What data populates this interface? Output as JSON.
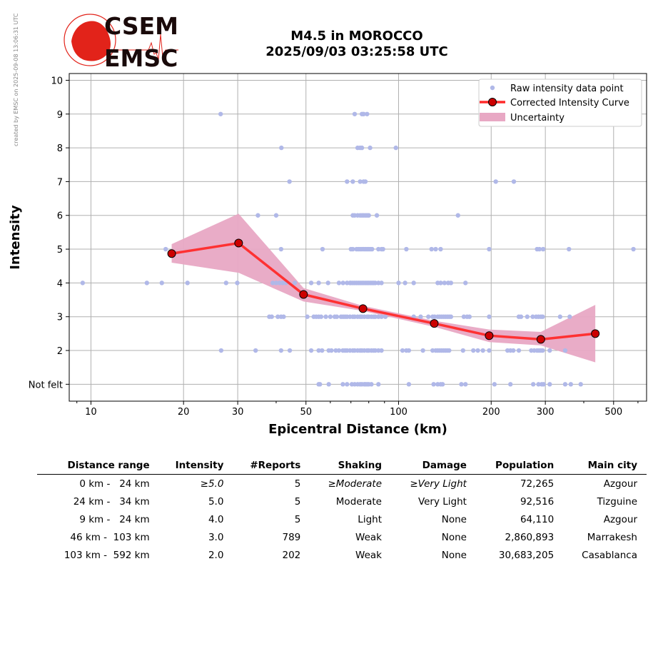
{
  "side_note": "created by EMSC on 2025-09-08 13:06:31 UTC",
  "logo": {
    "line1": "CSEM",
    "line2": "EMSC"
  },
  "title": {
    "line1": "M4.5 in MOROCCO",
    "line2": "2025/09/03 03:25:58 UTC"
  },
  "colors": {
    "raw": "#b0b8e8",
    "curve": "#ff2a2a",
    "marker": "#cc0000",
    "band": "#e8a8c4"
  },
  "chart_data": {
    "type": "scatter",
    "xlabel": "Epicentral Distance (km)",
    "ylabel": "Intensity",
    "xscale": "log",
    "xlim": [
      8.5,
      640
    ],
    "ylim": [
      0.5,
      10.2
    ],
    "xticks": [
      10,
      20,
      30,
      50,
      100,
      200,
      300,
      500
    ],
    "xtick_labels": [
      "10",
      "20",
      "30",
      "50",
      "100",
      "200",
      "300",
      "500"
    ],
    "yticks": [
      1,
      2,
      3,
      4,
      5,
      6,
      7,
      8,
      9,
      10
    ],
    "ytick_labels": [
      "Not felt",
      "2",
      "3",
      "4",
      "5",
      "6",
      "7",
      "8",
      "9",
      "10"
    ],
    "grid": true,
    "legend_position": "top-right",
    "legend": [
      "Raw intensity data point",
      "Corrected Intensity Curve",
      "Uncertainty"
    ],
    "raw_points": [
      {
        "i": 9,
        "d": [
          26.4,
          72,
          76,
          77,
          79
        ]
      },
      {
        "i": 8,
        "d": [
          41.6,
          73.6,
          75,
          76,
          80.8,
          98
        ]
      },
      {
        "i": 7,
        "d": [
          44.2,
          68,
          71,
          75,
          77,
          78,
          207,
          237
        ]
      },
      {
        "i": 6,
        "d": [
          34.9,
          40,
          71,
          72,
          73.6,
          75,
          76,
          77,
          78,
          79,
          80,
          85,
          156
        ]
      },
      {
        "i": 5,
        "d": [
          17.5,
          41.5,
          56.6,
          70,
          71,
          73,
          74,
          75,
          76,
          77,
          78,
          79,
          80,
          81,
          82,
          86,
          88,
          89,
          106,
          128,
          132,
          137,
          197,
          282,
          287,
          295,
          358,
          580
        ]
      },
      {
        "i": 4,
        "d": [
          9.4,
          15.2,
          17,
          20.6,
          27.5,
          29.9,
          39,
          40,
          41,
          42,
          43,
          46,
          52,
          55,
          59,
          64,
          66,
          68,
          69.5,
          70,
          71,
          72,
          73,
          74,
          75,
          76,
          77,
          78,
          79,
          80,
          81,
          82,
          83,
          84,
          86,
          88,
          100,
          105,
          112,
          134,
          137,
          141,
          145,
          148,
          165
        ]
      },
      {
        "i": 3,
        "d": [
          38,
          38.7,
          40.5,
          41.5,
          42.3,
          50.5,
          53,
          54,
          55,
          56,
          58,
          60,
          62,
          63,
          65,
          66,
          67,
          68,
          69.5,
          71,
          72,
          73.6,
          75,
          76,
          77.4,
          79,
          80,
          81.6,
          83,
          84,
          86,
          88,
          90.6,
          112,
          118,
          125,
          129,
          131,
          134,
          136,
          138,
          140,
          142,
          144,
          146,
          148,
          163,
          167,
          170,
          197,
          246,
          250,
          262,
          273,
          280,
          285,
          290,
          294,
          335,
          360
        ]
      },
      {
        "i": 2,
        "d": [
          26.5,
          34.3,
          41.5,
          44.3,
          52,
          55,
          56.4,
          59.3,
          60.5,
          62.5,
          64,
          65.9,
          67,
          68,
          69.5,
          71,
          72,
          73.6,
          75,
          76,
          77.4,
          79,
          80,
          81.6,
          83,
          84,
          86,
          88,
          103,
          106,
          108,
          120,
          129,
          132,
          134,
          136,
          138,
          140,
          142,
          144,
          146,
          162,
          175,
          181,
          188,
          197,
          226,
          231,
          236,
          246,
          270,
          276,
          282,
          286,
          290,
          294,
          310,
          348
        ]
      },
      {
        "i": 1,
        "d": [
          55,
          55.5,
          59.3,
          65.9,
          68,
          70.5,
          72,
          73.6,
          75,
          76,
          77.4,
          78,
          79,
          80,
          81.6,
          86,
          108,
          130,
          134,
          137,
          139,
          160,
          165,
          205,
          231,
          274,
          285,
          292,
          296,
          310,
          348,
          363,
          391
        ]
      }
    ],
    "curve": {
      "d": [
        18.3,
        30.2,
        49.1,
        76.6,
        130.6,
        197,
        290,
        436
      ],
      "i": [
        4.87,
        5.18,
        3.66,
        3.24,
        2.8,
        2.44,
        2.33,
        2.5
      ],
      "upper": [
        5.15,
        6.05,
        3.85,
        3.32,
        2.88,
        2.62,
        2.55,
        3.35
      ],
      "lower": [
        4.6,
        4.3,
        3.45,
        3.17,
        2.7,
        2.25,
        2.15,
        1.65
      ]
    }
  },
  "table": {
    "headers": [
      "Distance range",
      "Intensity",
      "#Reports",
      "Shaking",
      "Damage",
      "Population",
      "Main city"
    ],
    "rows": [
      [
        "0 km -   24 km",
        "≥5.0",
        "5",
        "≥Moderate",
        "≥Very Light",
        "72,265",
        "Azgour"
      ],
      [
        "24 km -   34 km",
        "5.0",
        "5",
        "Moderate",
        "Very Light",
        "92,516",
        "Tizguine"
      ],
      [
        "9 km -   24 km",
        "4.0",
        "5",
        "Light",
        "None",
        "64,110",
        "Azgour"
      ],
      [
        "46 km -  103 km",
        "3.0",
        "789",
        "Weak",
        "None",
        "2,860,893",
        "Marrakesh"
      ],
      [
        "103 km -  592 km",
        "2.0",
        "202",
        "Weak",
        "None",
        "30,683,205",
        "Casablanca"
      ]
    ]
  }
}
